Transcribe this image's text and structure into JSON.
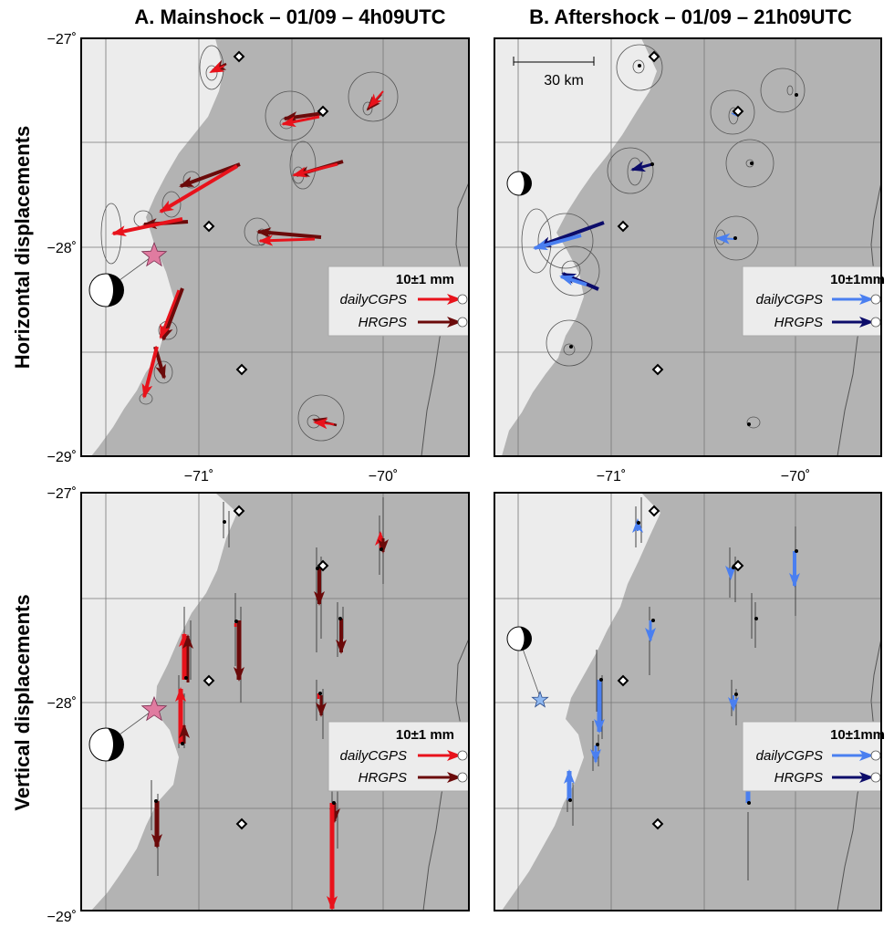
{
  "titles": {
    "a": "A. Mainshock – 01/09 – 4h09UTC",
    "b": "B. Aftershock – 01/09 – 21h09UTC"
  },
  "row_labels": {
    "horizontal": "Horizontal displacements",
    "vertical": "Vertical displacements"
  },
  "axes": {
    "lat_labels": [
      "−27˚",
      "−28˚",
      "−29˚"
    ],
    "lon_labels": [
      "−71˚",
      "−70˚"
    ]
  },
  "scale_bar": {
    "label": "30 km"
  },
  "legend": {
    "a": {
      "title": "10±1 mm",
      "items": [
        "dailyCGPS",
        "HRGPS"
      ]
    },
    "b": {
      "title": "10±1mm",
      "items": [
        "dailyCGPS",
        "HRGPS"
      ]
    }
  },
  "colors": {
    "ocean": "#ececec",
    "land": "#b3b3b3",
    "daily_main": "#e8121b",
    "hr_main": "#6b0a0a",
    "daily_after": "#4a7ff0",
    "hr_after": "#0c0c6a",
    "epicenter_main": "#e07ba0",
    "epicenter_after": "#8fb8f0"
  },
  "icons": {
    "epicenter": "star-icon",
    "focal_mechanism": "beachball-icon",
    "town": "diamond-icon"
  }
}
